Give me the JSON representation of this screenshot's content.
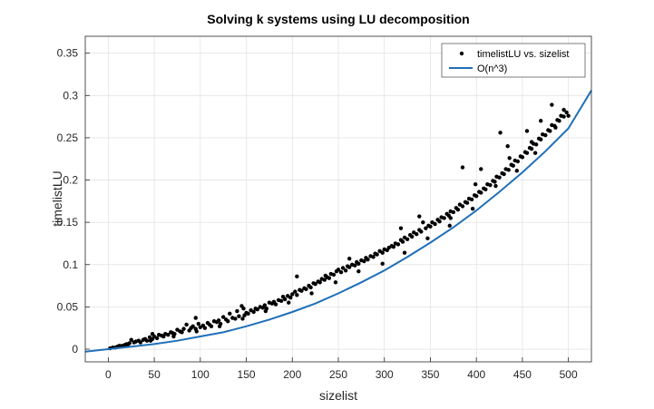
{
  "chart_data": {
    "type": "scatter",
    "title": "Solving k systems using LU decomposition",
    "xlabel": "sizelist",
    "ylabel": "timelistLU",
    "xlim": [
      -25,
      525
    ],
    "ylim": [
      -0.015,
      0.37
    ],
    "xticks": [
      0,
      50,
      100,
      150,
      200,
      250,
      300,
      350,
      400,
      450,
      500
    ],
    "yticks": [
      0,
      0.05,
      0.1,
      0.15,
      0.2,
      0.25,
      0.3,
      0.35
    ],
    "xtick_labels": [
      "0",
      "50",
      "100",
      "150",
      "200",
      "250",
      "300",
      "350",
      "400",
      "450",
      "500"
    ],
    "ytick_labels": [
      "0",
      "0.05",
      "0.1",
      "0.15",
      "0.2",
      "0.25",
      "0.3",
      "0.35"
    ],
    "grid": true,
    "legend_position": "top-right",
    "series": [
      {
        "name": "timelistLU vs. sizelist",
        "kind": "markers",
        "color": "#000000",
        "points": [
          [
            2,
            0.001
          ],
          [
            5,
            0.002
          ],
          [
            8,
            0.002
          ],
          [
            10,
            0.003
          ],
          [
            12,
            0.004
          ],
          [
            15,
            0.004
          ],
          [
            18,
            0.005
          ],
          [
            20,
            0.006
          ],
          [
            23,
            0.007
          ],
          [
            25,
            0.011
          ],
          [
            28,
            0.008
          ],
          [
            30,
            0.009
          ],
          [
            33,
            0.01
          ],
          [
            35,
            0.008
          ],
          [
            38,
            0.011
          ],
          [
            40,
            0.012
          ],
          [
            42,
            0.01
          ],
          [
            45,
            0.014
          ],
          [
            48,
            0.012
          ],
          [
            50,
            0.015
          ],
          [
            53,
            0.013
          ],
          [
            55,
            0.017
          ],
          [
            58,
            0.016
          ],
          [
            60,
            0.015
          ],
          [
            62,
            0.018
          ],
          [
            65,
            0.017
          ],
          [
            68,
            0.02
          ],
          [
            70,
            0.019
          ],
          [
            72,
            0.018
          ],
          [
            75,
            0.023
          ],
          [
            78,
            0.021
          ],
          [
            80,
            0.02
          ],
          [
            82,
            0.024
          ],
          [
            85,
            0.029
          ],
          [
            88,
            0.022
          ],
          [
            90,
            0.025
          ],
          [
            92,
            0.027
          ],
          [
            95,
            0.024
          ],
          [
            98,
            0.03
          ],
          [
            100,
            0.026
          ],
          [
            103,
            0.028
          ],
          [
            105,
            0.025
          ],
          [
            108,
            0.031
          ],
          [
            110,
            0.029
          ],
          [
            112,
            0.027
          ],
          [
            115,
            0.033
          ],
          [
            118,
            0.032
          ],
          [
            120,
            0.034
          ],
          [
            122,
            0.03
          ],
          [
            125,
            0.038
          ],
          [
            128,
            0.035
          ],
          [
            130,
            0.033
          ],
          [
            132,
            0.042
          ],
          [
            135,
            0.037
          ],
          [
            138,
            0.036
          ],
          [
            140,
            0.045
          ],
          [
            142,
            0.039
          ],
          [
            145,
            0.051
          ],
          [
            148,
            0.04
          ],
          [
            150,
            0.043
          ],
          [
            152,
            0.042
          ],
          [
            155,
            0.046
          ],
          [
            158,
            0.044
          ],
          [
            160,
            0.048
          ],
          [
            162,
            0.047
          ],
          [
            165,
            0.05
          ],
          [
            168,
            0.049
          ],
          [
            170,
            0.052
          ],
          [
            172,
            0.048
          ],
          [
            175,
            0.055
          ],
          [
            178,
            0.054
          ],
          [
            180,
            0.056
          ],
          [
            182,
            0.053
          ],
          [
            185,
            0.058
          ],
          [
            188,
            0.057
          ],
          [
            190,
            0.062
          ],
          [
            192,
            0.059
          ],
          [
            195,
            0.063
          ],
          [
            198,
            0.061
          ],
          [
            200,
            0.065
          ],
          [
            203,
            0.068
          ],
          [
            205,
            0.064
          ],
          [
            208,
            0.07
          ],
          [
            210,
            0.069
          ],
          [
            213,
            0.072
          ],
          [
            215,
            0.071
          ],
          [
            218,
            0.075
          ],
          [
            220,
            0.073
          ],
          [
            223,
            0.078
          ],
          [
            225,
            0.077
          ],
          [
            228,
            0.08
          ],
          [
            230,
            0.079
          ],
          [
            232,
            0.083
          ],
          [
            235,
            0.082
          ],
          [
            238,
            0.085
          ],
          [
            240,
            0.084
          ],
          [
            242,
            0.089
          ],
          [
            245,
            0.088
          ],
          [
            248,
            0.092
          ],
          [
            250,
            0.094
          ],
          [
            253,
            0.091
          ],
          [
            255,
            0.096
          ],
          [
            258,
            0.093
          ],
          [
            260,
            0.098
          ],
          [
            262,
            0.097
          ],
          [
            265,
            0.1
          ],
          [
            268,
            0.099
          ],
          [
            270,
            0.103
          ],
          [
            272,
            0.101
          ],
          [
            275,
            0.105
          ],
          [
            278,
            0.104
          ],
          [
            280,
            0.108
          ],
          [
            282,
            0.106
          ],
          [
            285,
            0.11
          ],
          [
            288,
            0.109
          ],
          [
            290,
            0.113
          ],
          [
            292,
            0.112
          ],
          [
            295,
            0.116
          ],
          [
            298,
            0.114
          ],
          [
            300,
            0.118
          ],
          [
            303,
            0.117
          ],
          [
            305,
            0.12
          ],
          [
            308,
            0.122
          ],
          [
            310,
            0.121
          ],
          [
            312,
            0.125
          ],
          [
            315,
            0.124
          ],
          [
            318,
            0.129
          ],
          [
            320,
            0.127
          ],
          [
            322,
            0.132
          ],
          [
            325,
            0.13
          ],
          [
            328,
            0.135
          ],
          [
            330,
            0.133
          ],
          [
            332,
            0.138
          ],
          [
            335,
            0.136
          ],
          [
            338,
            0.141
          ],
          [
            340,
            0.139
          ],
          [
            342,
            0.15
          ],
          [
            345,
            0.143
          ],
          [
            348,
            0.146
          ],
          [
            350,
            0.145
          ],
          [
            352,
            0.15
          ],
          [
            355,
            0.148
          ],
          [
            358,
            0.153
          ],
          [
            360,
            0.151
          ],
          [
            362,
            0.156
          ],
          [
            365,
            0.155
          ],
          [
            368,
            0.16
          ],
          [
            370,
            0.158
          ],
          [
            372,
            0.163
          ],
          [
            375,
            0.162
          ],
          [
            378,
            0.167
          ],
          [
            380,
            0.165
          ],
          [
            382,
            0.171
          ],
          [
            385,
            0.169
          ],
          [
            388,
            0.174
          ],
          [
            390,
            0.173
          ],
          [
            392,
            0.178
          ],
          [
            395,
            0.177
          ],
          [
            398,
            0.182
          ],
          [
            400,
            0.181
          ],
          [
            403,
            0.186
          ],
          [
            405,
            0.185
          ],
          [
            408,
            0.19
          ],
          [
            410,
            0.189
          ],
          [
            412,
            0.195
          ],
          [
            415,
            0.194
          ],
          [
            418,
            0.199
          ],
          [
            420,
            0.198
          ],
          [
            422,
            0.204
          ],
          [
            425,
            0.203
          ],
          [
            428,
            0.208
          ],
          [
            430,
            0.207
          ],
          [
            432,
            0.213
          ],
          [
            435,
            0.212
          ],
          [
            438,
            0.218
          ],
          [
            440,
            0.217
          ],
          [
            442,
            0.223
          ],
          [
            445,
            0.222
          ],
          [
            448,
            0.228
          ],
          [
            450,
            0.227
          ],
          [
            453,
            0.233
          ],
          [
            455,
            0.232
          ],
          [
            458,
            0.238
          ],
          [
            460,
            0.237
          ],
          [
            462,
            0.243
          ],
          [
            465,
            0.242
          ],
          [
            468,
            0.249
          ],
          [
            470,
            0.248
          ],
          [
            472,
            0.254
          ],
          [
            475,
            0.253
          ],
          [
            478,
            0.259
          ],
          [
            480,
            0.258
          ],
          [
            482,
            0.265
          ],
          [
            485,
            0.264
          ],
          [
            488,
            0.271
          ],
          [
            490,
            0.27
          ],
          [
            492,
            0.276
          ],
          [
            495,
            0.275
          ],
          [
            498,
            0.28
          ],
          [
            500,
            0.276
          ],
          [
            48,
            0.018
          ],
          [
            95,
            0.037
          ],
          [
            147,
            0.048
          ],
          [
            205,
            0.086
          ],
          [
            236,
            0.087
          ],
          [
            262,
            0.107
          ],
          [
            318,
            0.143
          ],
          [
            338,
            0.157
          ],
          [
            372,
            0.155
          ],
          [
            399,
            0.195
          ],
          [
            405,
            0.213
          ],
          [
            436,
            0.226
          ],
          [
            460,
            0.245
          ],
          [
            482,
            0.289
          ],
          [
            495,
            0.283
          ],
          [
            486,
            0.262
          ],
          [
            464,
            0.232
          ],
          [
            444,
            0.211
          ],
          [
            421,
            0.193
          ],
          [
            396,
            0.166
          ],
          [
            371,
            0.146
          ],
          [
            347,
            0.131
          ],
          [
            322,
            0.114
          ],
          [
            298,
            0.101
          ],
          [
            272,
            0.092
          ],
          [
            247,
            0.079
          ],
          [
            221,
            0.066
          ],
          [
            196,
            0.055
          ],
          [
            171,
            0.045
          ],
          [
            146,
            0.036
          ],
          [
            121,
            0.027
          ],
          [
            96,
            0.021
          ],
          [
            71,
            0.015
          ],
          [
            46,
            0.01
          ],
          [
            21,
            0.004
          ],
          [
            385,
            0.215
          ],
          [
            426,
            0.256
          ],
          [
            434,
            0.24
          ],
          [
            470,
            0.27
          ],
          [
            455,
            0.258
          ]
        ]
      },
      {
        "name": "O(n^3)",
        "kind": "line",
        "color": "#1f6fb8",
        "x": [
          -25,
          0,
          25,
          50,
          75,
          100,
          125,
          150,
          175,
          200,
          225,
          250,
          275,
          300,
          325,
          350,
          375,
          400,
          425,
          450,
          475,
          500,
          525
        ],
        "values": [
          -0.003,
          0.0,
          0.003,
          0.006,
          0.01,
          0.015,
          0.02,
          0.027,
          0.035,
          0.044,
          0.054,
          0.066,
          0.079,
          0.093,
          0.109,
          0.126,
          0.144,
          0.164,
          0.186,
          0.209,
          0.234,
          0.261,
          0.306
        ]
      }
    ]
  }
}
